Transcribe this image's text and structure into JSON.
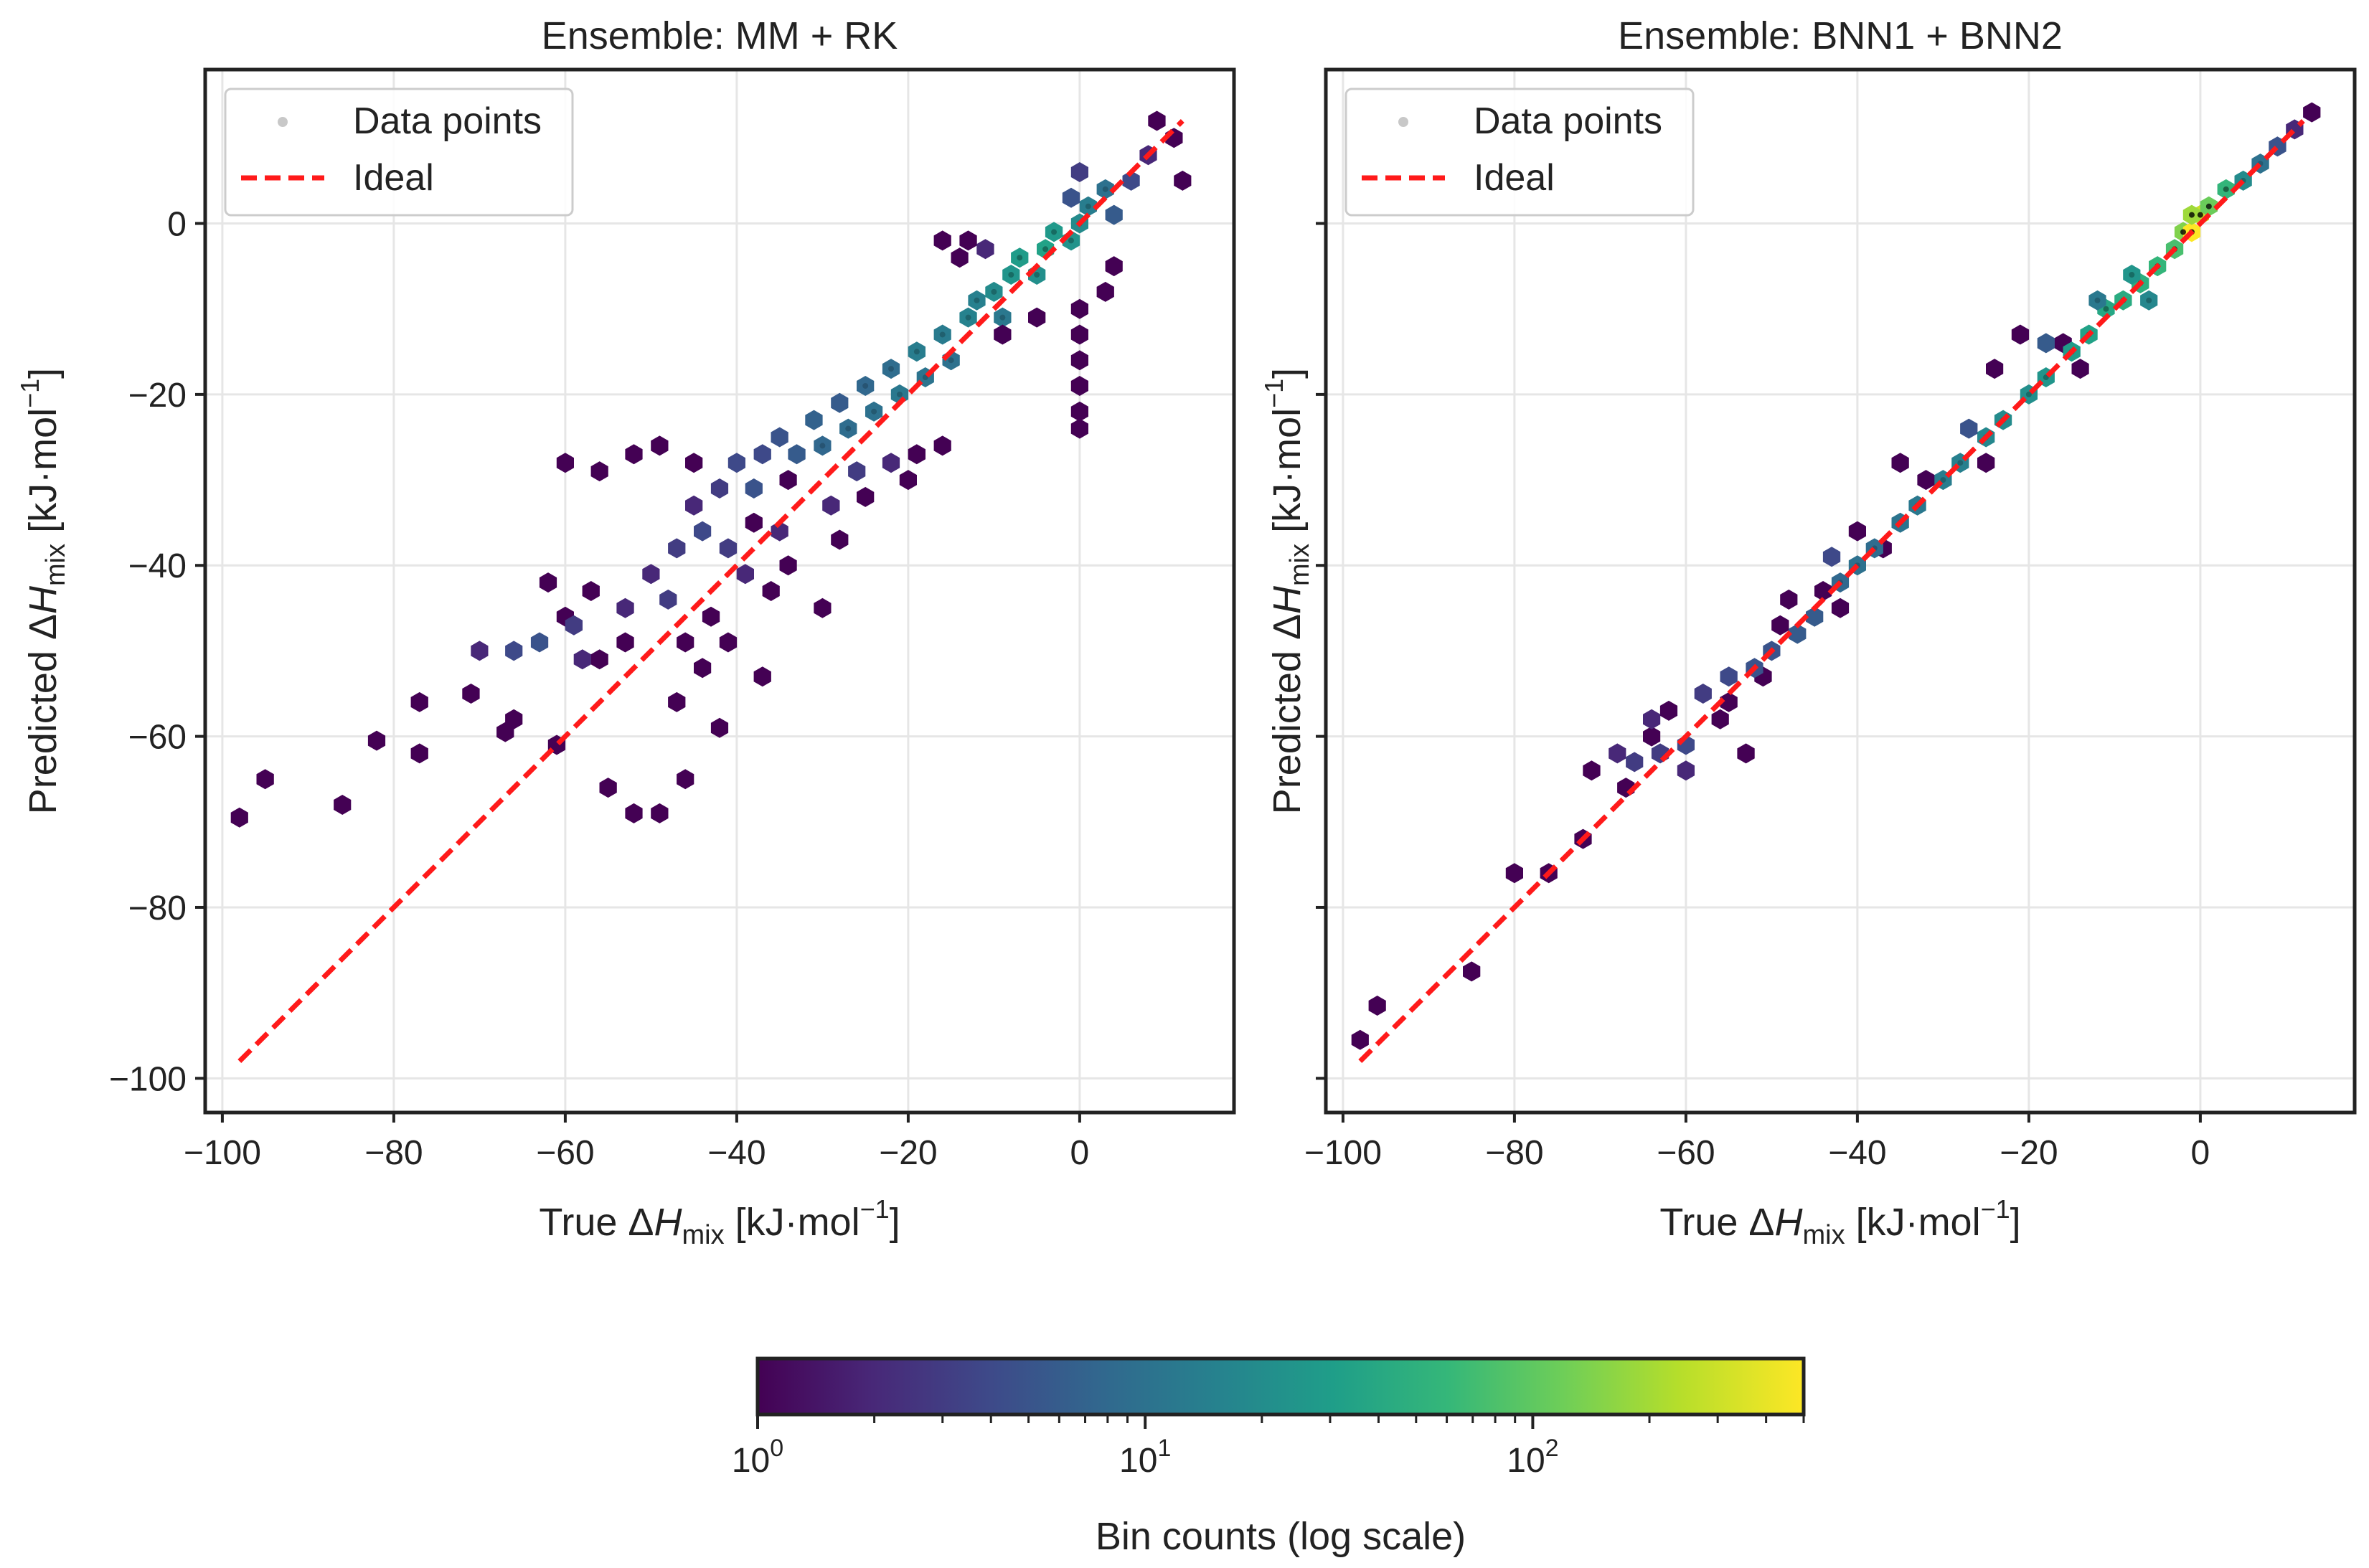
{
  "chart_data": [
    {
      "type": "scatter",
      "variant": "hexbin",
      "title": "Ensemble: MM + RK",
      "xlabel": {
        "prefix": "True ",
        "delta": "Δ",
        "var": "H",
        "sub": "mix",
        "units": " [kJ·mol",
        "exp": "−1",
        "close": "]"
      },
      "ylabel": {
        "prefix": "Predicted ",
        "delta": "Δ",
        "var": "H",
        "sub": "mix",
        "units": " [kJ·mol",
        "exp": "−1",
        "close": "]"
      },
      "xlim": [
        -102,
        18
      ],
      "ylim": [
        -104,
        18
      ],
      "xticks": [
        -100,
        -80,
        -60,
        -40,
        -20,
        0
      ],
      "yticks": [
        -100,
        -80,
        -60,
        -40,
        -20,
        0
      ],
      "xtick_labels": [
        "−100",
        "−80",
        "−60",
        "−40",
        "−20",
        "0"
      ],
      "ytick_labels": [
        "−100",
        "−80",
        "−60",
        "−40",
        "−20",
        "0"
      ],
      "show_yticklabels": true,
      "grid": true,
      "legend": {
        "position": "top-left",
        "entries": [
          "Data points",
          "Ideal"
        ]
      },
      "ideal_line": {
        "x": [
          -98,
          12
        ],
        "y": [
          -98,
          12
        ],
        "color": "#ff1a1a"
      },
      "hexbins": [
        {
          "x": -98,
          "y": -69.5,
          "count": 1
        },
        {
          "x": -95,
          "y": -65,
          "count": 1
        },
        {
          "x": -86,
          "y": -68,
          "count": 1
        },
        {
          "x": -82,
          "y": -60.5,
          "count": 1
        },
        {
          "x": -77,
          "y": -62,
          "count": 1
        },
        {
          "x": -77,
          "y": -56,
          "count": 1
        },
        {
          "x": -71,
          "y": -55,
          "count": 1
        },
        {
          "x": -66,
          "y": -58,
          "count": 1
        },
        {
          "x": -67,
          "y": -59.5,
          "count": 1
        },
        {
          "x": -61,
          "y": -61,
          "count": 1
        },
        {
          "x": -55,
          "y": -66,
          "count": 1
        },
        {
          "x": -52,
          "y": -69,
          "count": 1
        },
        {
          "x": -49,
          "y": -69,
          "count": 1
        },
        {
          "x": -46,
          "y": -65,
          "count": 1
        },
        {
          "x": -42,
          "y": -59,
          "count": 1
        },
        {
          "x": -47,
          "y": -56,
          "count": 1
        },
        {
          "x": -37,
          "y": -53,
          "count": 1
        },
        {
          "x": -44,
          "y": -52,
          "count": 1
        },
        {
          "x": -56,
          "y": -51,
          "count": 1
        },
        {
          "x": -53,
          "y": -49,
          "count": 1
        },
        {
          "x": -46,
          "y": -49,
          "count": 1
        },
        {
          "x": -41,
          "y": -49,
          "count": 1
        },
        {
          "x": -43,
          "y": -46,
          "count": 1
        },
        {
          "x": -36,
          "y": -43,
          "count": 1
        },
        {
          "x": -30,
          "y": -45,
          "count": 1
        },
        {
          "x": -34,
          "y": -40,
          "count": 1
        },
        {
          "x": -28,
          "y": -37,
          "count": 1
        },
        {
          "x": -34,
          "y": -30,
          "count": 1
        },
        {
          "x": -38,
          "y": -35,
          "count": 1
        },
        {
          "x": -25,
          "y": -32,
          "count": 1
        },
        {
          "x": -20,
          "y": -30,
          "count": 1
        },
        {
          "x": -19,
          "y": -27,
          "count": 1
        },
        {
          "x": -16,
          "y": -26,
          "count": 1
        },
        {
          "x": -60,
          "y": -28,
          "count": 1
        },
        {
          "x": -56,
          "y": -29,
          "count": 1
        },
        {
          "x": -52,
          "y": -27,
          "count": 1
        },
        {
          "x": -49,
          "y": -26,
          "count": 1
        },
        {
          "x": -45,
          "y": -28,
          "count": 1
        },
        {
          "x": -62,
          "y": -42,
          "count": 1
        },
        {
          "x": -57,
          "y": -43,
          "count": 1
        },
        {
          "x": -60,
          "y": -46,
          "count": 1
        },
        {
          "x": -70,
          "y": -50,
          "count": 2
        },
        {
          "x": -66,
          "y": -50,
          "count": 4
        },
        {
          "x": -63,
          "y": -49,
          "count": 5
        },
        {
          "x": -59,
          "y": -47,
          "count": 3
        },
        {
          "x": -58,
          "y": -51,
          "count": 2
        },
        {
          "x": -50,
          "y": -41,
          "count": 2
        },
        {
          "x": -47,
          "y": -38,
          "count": 3
        },
        {
          "x": -44,
          "y": -36,
          "count": 4
        },
        {
          "x": -41,
          "y": -38,
          "count": 3
        },
        {
          "x": -45,
          "y": -33,
          "count": 2
        },
        {
          "x": -42,
          "y": -31,
          "count": 3
        },
        {
          "x": -40,
          "y": -28,
          "count": 4
        },
        {
          "x": -38,
          "y": -31,
          "count": 5
        },
        {
          "x": -37,
          "y": -27,
          "count": 4
        },
        {
          "x": -35,
          "y": -25,
          "count": 5
        },
        {
          "x": -33,
          "y": -27,
          "count": 6
        },
        {
          "x": -31,
          "y": -23,
          "count": 7
        },
        {
          "x": -30,
          "y": -26,
          "count": 8
        },
        {
          "x": -28,
          "y": -21,
          "count": 6
        },
        {
          "x": -27,
          "y": -24,
          "count": 9
        },
        {
          "x": -25,
          "y": -19,
          "count": 8
        },
        {
          "x": -24,
          "y": -22,
          "count": 10
        },
        {
          "x": -22,
          "y": -17,
          "count": 9
        },
        {
          "x": -21,
          "y": -20,
          "count": 12
        },
        {
          "x": -19,
          "y": -15,
          "count": 14
        },
        {
          "x": -18,
          "y": -18,
          "count": 11
        },
        {
          "x": -16,
          "y": -13,
          "count": 13
        },
        {
          "x": -15,
          "y": -16,
          "count": 10
        },
        {
          "x": -13,
          "y": -11,
          "count": 16
        },
        {
          "x": -12,
          "y": -9,
          "count": 15
        },
        {
          "x": -10,
          "y": -8,
          "count": 20
        },
        {
          "x": -9,
          "y": -11,
          "count": 12
        },
        {
          "x": -8,
          "y": -6,
          "count": 25
        },
        {
          "x": -7,
          "y": -4,
          "count": 30
        },
        {
          "x": -5,
          "y": -6,
          "count": 22
        },
        {
          "x": -4,
          "y": -3,
          "count": 35
        },
        {
          "x": -3,
          "y": -1,
          "count": 28
        },
        {
          "x": -1,
          "y": -2,
          "count": 24
        },
        {
          "x": 0,
          "y": 0,
          "count": 20
        },
        {
          "x": 1,
          "y": 2,
          "count": 14
        },
        {
          "x": 3,
          "y": 4,
          "count": 10
        },
        {
          "x": 4,
          "y": 1,
          "count": 6
        },
        {
          "x": 6,
          "y": 5,
          "count": 4
        },
        {
          "x": 8,
          "y": 8,
          "count": 2
        },
        {
          "x": 9,
          "y": 12,
          "count": 1
        },
        {
          "x": 11,
          "y": 10,
          "count": 1
        },
        {
          "x": 12,
          "y": 5,
          "count": 1
        },
        {
          "x": 0,
          "y": 6,
          "count": 3
        },
        {
          "x": -1,
          "y": 3,
          "count": 5
        },
        {
          "x": -16,
          "y": -2,
          "count": 1
        },
        {
          "x": -13,
          "y": -2,
          "count": 1
        },
        {
          "x": -14,
          "y": -4,
          "count": 1
        },
        {
          "x": -11,
          "y": -3,
          "count": 2
        },
        {
          "x": -9,
          "y": -13,
          "count": 1
        },
        {
          "x": -5,
          "y": -11,
          "count": 1
        },
        {
          "x": 3,
          "y": -8,
          "count": 1
        },
        {
          "x": 4,
          "y": -5,
          "count": 1
        },
        {
          "x": 0,
          "y": -10,
          "count": 1
        },
        {
          "x": 0,
          "y": -13,
          "count": 1
        },
        {
          "x": 0,
          "y": -16,
          "count": 1
        },
        {
          "x": 0,
          "y": -19,
          "count": 1
        },
        {
          "x": 0,
          "y": -22,
          "count": 1
        },
        {
          "x": 0,
          "y": -24,
          "count": 1
        },
        {
          "x": -29,
          "y": -33,
          "count": 2
        },
        {
          "x": -26,
          "y": -29,
          "count": 3
        },
        {
          "x": -22,
          "y": -28,
          "count": 2
        },
        {
          "x": -35,
          "y": -36,
          "count": 2
        },
        {
          "x": -53,
          "y": -45,
          "count": 2
        },
        {
          "x": -48,
          "y": -44,
          "count": 3
        },
        {
          "x": -39,
          "y": -41,
          "count": 2
        }
      ]
    },
    {
      "type": "scatter",
      "variant": "hexbin",
      "title": "Ensemble: BNN1 + BNN2",
      "xlabel": {
        "prefix": "True ",
        "delta": "Δ",
        "var": "H",
        "sub": "mix",
        "units": " [kJ·mol",
        "exp": "−1",
        "close": "]"
      },
      "ylabel": {
        "prefix": "Predicted ",
        "delta": "Δ",
        "var": "H",
        "sub": "mix",
        "units": " [kJ·mol",
        "exp": "−1",
        "close": "]"
      },
      "xlim": [
        -102,
        18
      ],
      "ylim": [
        -104,
        18
      ],
      "xticks": [
        -100,
        -80,
        -60,
        -40,
        -20,
        0
      ],
      "yticks": [
        -100,
        -80,
        -60,
        -40,
        -20,
        0
      ],
      "xtick_labels": [
        "−100",
        "−80",
        "−60",
        "−40",
        "−20",
        "0"
      ],
      "ytick_labels": [
        "−100",
        "−80",
        "−60",
        "−40",
        "−20",
        "0"
      ],
      "show_yticklabels": false,
      "grid": true,
      "legend": {
        "position": "top-left",
        "entries": [
          "Data points",
          "Ideal"
        ]
      },
      "ideal_line": {
        "x": [
          -98,
          12
        ],
        "y": [
          -98,
          12
        ],
        "color": "#ff1a1a"
      },
      "hexbins": [
        {
          "x": -98,
          "y": -95.5,
          "count": 1
        },
        {
          "x": -96,
          "y": -91.5,
          "count": 1
        },
        {
          "x": -85,
          "y": -87.5,
          "count": 1
        },
        {
          "x": -80,
          "y": -76,
          "count": 1
        },
        {
          "x": -76,
          "y": -76,
          "count": 1
        },
        {
          "x": -72,
          "y": -72,
          "count": 1
        },
        {
          "x": -71,
          "y": -64,
          "count": 1
        },
        {
          "x": -67,
          "y": -66,
          "count": 1
        },
        {
          "x": -64,
          "y": -60,
          "count": 1
        },
        {
          "x": -62,
          "y": -57,
          "count": 1
        },
        {
          "x": -56,
          "y": -58,
          "count": 1
        },
        {
          "x": -55,
          "y": -56,
          "count": 1
        },
        {
          "x": -53,
          "y": -62,
          "count": 1
        },
        {
          "x": -51,
          "y": -53,
          "count": 1
        },
        {
          "x": -49,
          "y": -47,
          "count": 1
        },
        {
          "x": -48,
          "y": -44,
          "count": 1
        },
        {
          "x": -44,
          "y": -43,
          "count": 1
        },
        {
          "x": -42,
          "y": -45,
          "count": 1
        },
        {
          "x": -40,
          "y": -36,
          "count": 1
        },
        {
          "x": -37,
          "y": -38,
          "count": 1
        },
        {
          "x": -35,
          "y": -28,
          "count": 1
        },
        {
          "x": -32,
          "y": -30,
          "count": 1
        },
        {
          "x": -25,
          "y": -28,
          "count": 1
        },
        {
          "x": -24,
          "y": -17,
          "count": 1
        },
        {
          "x": -21,
          "y": -13,
          "count": 1
        },
        {
          "x": -16,
          "y": -14,
          "count": 1
        },
        {
          "x": -14,
          "y": -17,
          "count": 1
        },
        {
          "x": -68,
          "y": -62,
          "count": 2
        },
        {
          "x": -66,
          "y": -63,
          "count": 3
        },
        {
          "x": -63,
          "y": -62,
          "count": 3
        },
        {
          "x": -60,
          "y": -61,
          "count": 4
        },
        {
          "x": -58,
          "y": -55,
          "count": 3
        },
        {
          "x": -55,
          "y": -53,
          "count": 4
        },
        {
          "x": -52,
          "y": -52,
          "count": 5
        },
        {
          "x": -50,
          "y": -50,
          "count": 5
        },
        {
          "x": -47,
          "y": -48,
          "count": 6
        },
        {
          "x": -45,
          "y": -46,
          "count": 6
        },
        {
          "x": -42,
          "y": -42,
          "count": 8
        },
        {
          "x": -40,
          "y": -40,
          "count": 10
        },
        {
          "x": -38,
          "y": -38,
          "count": 9
        },
        {
          "x": -35,
          "y": -35,
          "count": 11
        },
        {
          "x": -33,
          "y": -33,
          "count": 12
        },
        {
          "x": -30,
          "y": -30,
          "count": 14
        },
        {
          "x": -28,
          "y": -28,
          "count": 15
        },
        {
          "x": -25,
          "y": -25,
          "count": 18
        },
        {
          "x": -23,
          "y": -23,
          "count": 20
        },
        {
          "x": -20,
          "y": -20,
          "count": 22
        },
        {
          "x": -18,
          "y": -18,
          "count": 25
        },
        {
          "x": -15,
          "y": -15,
          "count": 30
        },
        {
          "x": -13,
          "y": -13,
          "count": 35
        },
        {
          "x": -11,
          "y": -10,
          "count": 40
        },
        {
          "x": -9,
          "y": -9,
          "count": 45
        },
        {
          "x": -7,
          "y": -7,
          "count": 50
        },
        {
          "x": -5,
          "y": -5,
          "count": 60
        },
        {
          "x": -3,
          "y": -3,
          "count": 80
        },
        {
          "x": -2,
          "y": -1,
          "count": 150
        },
        {
          "x": -1,
          "y": -1,
          "count": 500
        },
        {
          "x": 0,
          "y": 1,
          "count": 300
        },
        {
          "x": 1,
          "y": 2,
          "count": 120
        },
        {
          "x": 3,
          "y": 4,
          "count": 60
        },
        {
          "x": -1,
          "y": 1,
          "count": 200
        },
        {
          "x": 5,
          "y": 5,
          "count": 20
        },
        {
          "x": 7,
          "y": 7,
          "count": 10
        },
        {
          "x": 9,
          "y": 9,
          "count": 5
        },
        {
          "x": 11,
          "y": 11,
          "count": 2
        },
        {
          "x": 13,
          "y": 13,
          "count": 1
        },
        {
          "x": -8,
          "y": -6,
          "count": 25
        },
        {
          "x": -6,
          "y": -9,
          "count": 18
        },
        {
          "x": -12,
          "y": -9,
          "count": 12
        },
        {
          "x": -18,
          "y": -14,
          "count": 6
        },
        {
          "x": -27,
          "y": -24,
          "count": 5
        },
        {
          "x": -43,
          "y": -39,
          "count": 4
        },
        {
          "x": -60,
          "y": -64,
          "count": 2
        },
        {
          "x": -64,
          "y": -58,
          "count": 2
        }
      ]
    }
  ],
  "colorbar": {
    "label": "Bin counts (log scale)",
    "colormap": "viridis",
    "colors": [
      "#440154",
      "#482878",
      "#3e4989",
      "#31688e",
      "#26828e",
      "#1f9e89",
      "#35b779",
      "#6ece58",
      "#b5de2b",
      "#fde725"
    ],
    "range": [
      1,
      500
    ],
    "major_ticks": [
      1,
      10,
      100
    ],
    "major_tick_labels": [
      {
        "base": "10",
        "exp": "0"
      },
      {
        "base": "10",
        "exp": "1"
      },
      {
        "base": "10",
        "exp": "2"
      }
    ]
  },
  "colors": {
    "ideal_line": "#ff1a1a",
    "grid": "#e6e6e6",
    "frame": "#222222",
    "data_point_marker": "#c8c8c8"
  }
}
